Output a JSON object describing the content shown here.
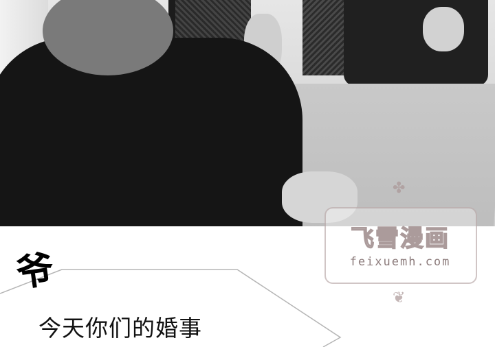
{
  "watermark": {
    "title": "飞雪漫画",
    "domain": "feixuemh.com",
    "ornament_top": "✤",
    "ornament_bottom": "❦"
  },
  "panel": {
    "speaker": "爷",
    "dialogue": "今天你们的婚事"
  }
}
